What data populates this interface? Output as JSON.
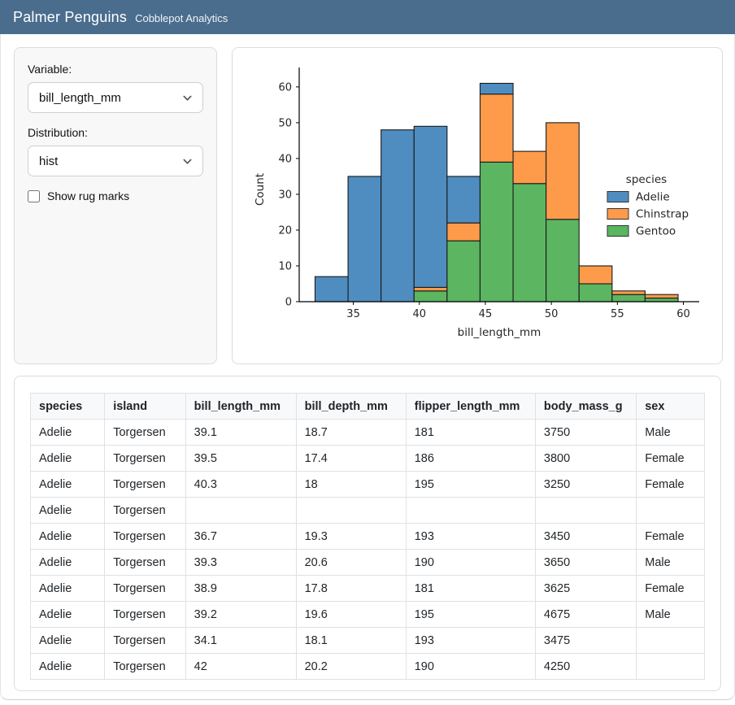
{
  "header": {
    "title": "Palmer Penguins",
    "subtitle": "Cobblepot Analytics"
  },
  "sidebar": {
    "variable_label": "Variable:",
    "variable_value": "bill_length_mm",
    "distribution_label": "Distribution:",
    "distribution_value": "hist",
    "rug_label": "Show rug marks",
    "rug_checked": false
  },
  "colors": {
    "header_bg": "#4a6d8e",
    "adelie": "#4f8dc0",
    "chinstrap": "#fd9b4b",
    "gentoo": "#5bb561",
    "bar_edge": "#1a1a1a"
  },
  "chart_data": {
    "type": "bar",
    "subtype": "stacked-histogram",
    "title": "",
    "xlabel": "bill_length_mm",
    "ylabel": "Count",
    "legend_title": "species",
    "legend_position": "right",
    "grid": false,
    "bin_start": 32.1,
    "bin_width": 2.5,
    "bin_edges": [
      32.1,
      34.6,
      37.1,
      39.6,
      42.1,
      44.6,
      47.1,
      49.6,
      52.1,
      54.6,
      57.1,
      59.6
    ],
    "xlim": [
      30.9,
      61.2
    ],
    "ylim": [
      0,
      62.7
    ],
    "xticks": [
      35,
      40,
      45,
      50,
      55,
      60
    ],
    "yticks": [
      0,
      10,
      20,
      30,
      40,
      50,
      60
    ],
    "stack_order_bottom_to_top": [
      "Gentoo",
      "Chinstrap",
      "Adelie"
    ],
    "series": [
      {
        "name": "Gentoo",
        "color": "#5bb561",
        "values": [
          0,
          0,
          0,
          3,
          17,
          39,
          33,
          23,
          5,
          2,
          1
        ]
      },
      {
        "name": "Chinstrap",
        "color": "#fd9b4b",
        "values": [
          0,
          0,
          0,
          1,
          5,
          19,
          9,
          27,
          5,
          1,
          1
        ]
      },
      {
        "name": "Adelie",
        "color": "#4f8dc0",
        "values": [
          7,
          35,
          48,
          45,
          13,
          3,
          0,
          0,
          0,
          0,
          0
        ]
      }
    ],
    "bin_totals": [
      7,
      35,
      48,
      49,
      35,
      61,
      42,
      50,
      10,
      3,
      2
    ],
    "legend_order": [
      "Adelie",
      "Chinstrap",
      "Gentoo"
    ]
  },
  "table": {
    "columns": [
      "species",
      "island",
      "bill_length_mm",
      "bill_depth_mm",
      "flipper_length_mm",
      "body_mass_g",
      "sex"
    ],
    "col_widths_pct": [
      11.0,
      12.0,
      16.4,
      16.3,
      19.2,
      15.0,
      10.1
    ],
    "rows": [
      [
        "Adelie",
        "Torgersen",
        "39.1",
        "18.7",
        "181",
        "3750",
        "Male"
      ],
      [
        "Adelie",
        "Torgersen",
        "39.5",
        "17.4",
        "186",
        "3800",
        "Female"
      ],
      [
        "Adelie",
        "Torgersen",
        "40.3",
        "18",
        "195",
        "3250",
        "Female"
      ],
      [
        "Adelie",
        "Torgersen",
        "",
        "",
        "",
        "",
        ""
      ],
      [
        "Adelie",
        "Torgersen",
        "36.7",
        "19.3",
        "193",
        "3450",
        "Female"
      ],
      [
        "Adelie",
        "Torgersen",
        "39.3",
        "20.6",
        "190",
        "3650",
        "Male"
      ],
      [
        "Adelie",
        "Torgersen",
        "38.9",
        "17.8",
        "181",
        "3625",
        "Female"
      ],
      [
        "Adelie",
        "Torgersen",
        "39.2",
        "19.6",
        "195",
        "4675",
        "Male"
      ],
      [
        "Adelie",
        "Torgersen",
        "34.1",
        "18.1",
        "193",
        "3475",
        ""
      ],
      [
        "Adelie",
        "Torgersen",
        "42",
        "20.2",
        "190",
        "4250",
        ""
      ]
    ]
  }
}
